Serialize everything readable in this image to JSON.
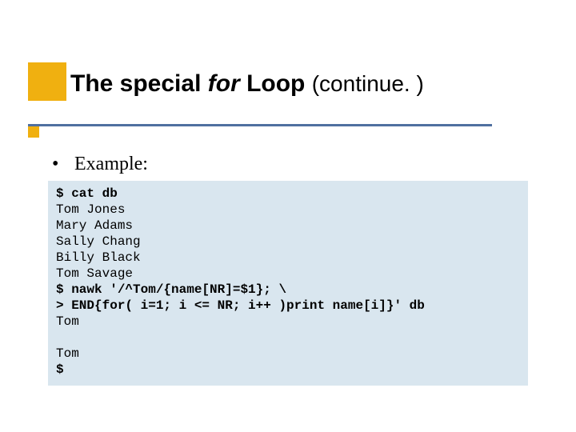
{
  "accent_color": "#f0b010",
  "line_color": "#5070a0",
  "code_bg": "#d9e6ef",
  "title": {
    "part1": "The special ",
    "italic": "for",
    "part2": " Loop ",
    "continued": "(continue. )"
  },
  "bullet": {
    "marker": "•",
    "text": "Example:"
  },
  "code": {
    "cmd1": "$ cat db",
    "out1": "Tom Jones",
    "out2": "Mary Adams",
    "out3": "Sally Chang",
    "out4": "Billy Black",
    "out5": "Tom Savage",
    "cmd2a": "$ nawk '/^Tom/{name[NR]=$1}; \\",
    "cmd2b": "> END{for( i=1; i <= NR; i++ )print name[i]}' db",
    "out6": "Tom",
    "out7": "Tom",
    "cmd3": "$"
  }
}
